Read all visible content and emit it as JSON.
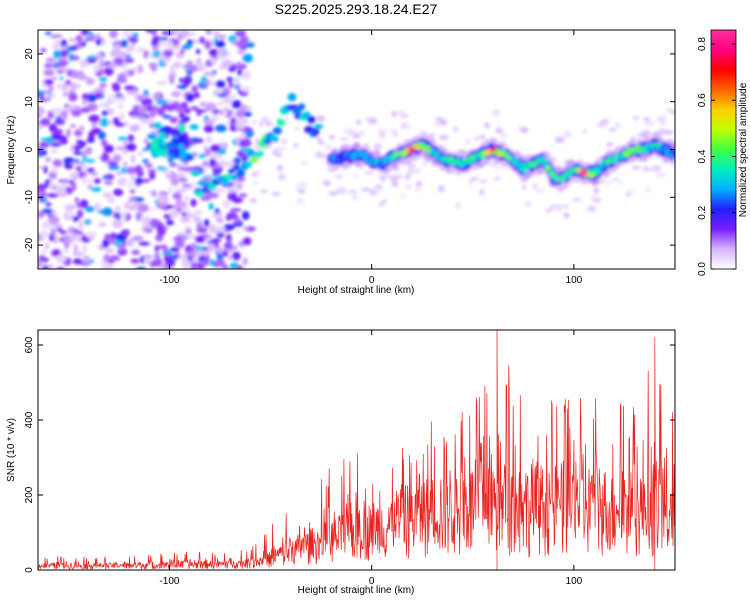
{
  "title": "S225.2025.293.18.24.E27",
  "chart_data": [
    {
      "type": "heatmap",
      "title": "S225.2025.293.18.24.E27",
      "xlabel": "Height of straight line (km)",
      "ylabel": "Frequency (Hz)",
      "xlim": [
        -165,
        150
      ],
      "ylim": [
        -25,
        25
      ],
      "xticks": [
        -100,
        0,
        100
      ],
      "xtick_labels": [
        "-100",
        "0",
        "100"
      ],
      "yticks": [
        -20,
        -10,
        0,
        10,
        20
      ],
      "ytick_labels": [
        "-20",
        "-10",
        "0",
        "10",
        "20"
      ],
      "colorbar": {
        "label": "Normalized spectral amplitude",
        "range": [
          0,
          0.85
        ],
        "ticks": [
          0.0,
          0.2,
          0.4,
          0.6,
          0.8
        ],
        "tick_labels": [
          "0.0",
          "0.2",
          "0.4",
          "0.6",
          "0.8"
        ],
        "colormap": [
          "#ffffff",
          "#d7b4ff",
          "#7a1fff",
          "#2020ff",
          "#00b0ff",
          "#00f0c0",
          "#40ff40",
          "#c0ff00",
          "#ffd000",
          "#ff6000",
          "#ff0000",
          "#ff0080",
          "#ff30a0"
        ]
      },
      "ridge": {
        "x": [
          -20,
          -12,
          -5,
          0,
          5,
          10,
          15,
          20,
          25,
          30,
          35,
          40,
          45,
          50,
          55,
          60,
          65,
          70,
          75,
          80,
          85,
          90,
          95,
          100,
          105,
          110,
          115,
          120,
          125,
          130,
          135,
          140,
          145,
          150
        ],
        "y": [
          -2,
          -1.5,
          -1,
          -2.5,
          -3,
          -1.5,
          -1,
          0,
          1,
          -0.5,
          -2,
          -2.5,
          -3,
          -2,
          -1,
          0,
          -1,
          -2,
          -4,
          -3,
          -2,
          -6,
          -6,
          -4,
          -5,
          -5,
          -3,
          -2,
          -1,
          0,
          0,
          1,
          0,
          -1
        ],
        "amplitude": [
          0.3,
          0.35,
          0.4,
          0.45,
          0.4,
          0.5,
          0.6,
          0.8,
          0.6,
          0.5,
          0.45,
          0.5,
          0.55,
          0.5,
          0.55,
          0.75,
          0.6,
          0.5,
          0.45,
          0.5,
          0.5,
          0.55,
          0.5,
          0.5,
          0.85,
          0.5,
          0.45,
          0.5,
          0.5,
          0.55,
          0.5,
          0.45,
          0.4,
          0.35
        ]
      },
      "diagonal_branch": {
        "x": [
          -85,
          -75,
          -65,
          -55,
          -45,
          -40,
          -35,
          -30,
          -25
        ],
        "y": [
          -8,
          -6,
          -4,
          0,
          5,
          10,
          8,
          5,
          3
        ],
        "amplitude": [
          0.3,
          0.3,
          0.35,
          0.4,
          0.35,
          0.3,
          0.3,
          0.3,
          0.25
        ]
      },
      "noise_region": {
        "xmin": -165,
        "xmax": -60,
        "amplitude_max": 0.2
      }
    },
    {
      "type": "line",
      "xlabel": "Height of straight line (km)",
      "ylabel": "SNR (10 * v/v)",
      "xlim": [
        -165,
        150
      ],
      "ylim": [
        0,
        640
      ],
      "xticks": [
        -100,
        0,
        100
      ],
      "xtick_labels": [
        "-100",
        "0",
        "100"
      ],
      "yticks": [
        0,
        200,
        400,
        600
      ],
      "ytick_labels": [
        "0",
        "200",
        "400",
        "600"
      ],
      "color": "#e8221e",
      "series": [
        {
          "name": "SNR",
          "x": [
            -165,
            -150,
            -135,
            -120,
            -105,
            -90,
            -75,
            -60,
            -50,
            -40,
            -30,
            -20,
            -10,
            0,
            10,
            20,
            30,
            40,
            50,
            60,
            62,
            70,
            80,
            90,
            100,
            110,
            120,
            130,
            140,
            150
          ],
          "typical": [
            15,
            15,
            15,
            15,
            18,
            20,
            20,
            25,
            40,
            70,
            90,
            110,
            130,
            150,
            170,
            200,
            220,
            230,
            230,
            230,
            230,
            240,
            230,
            230,
            240,
            230,
            220,
            230,
            220,
            200
          ],
          "peak": [
            35,
            38,
            35,
            38,
            45,
            50,
            45,
            60,
            120,
            180,
            210,
            280,
            310,
            350,
            360,
            400,
            420,
            460,
            450,
            560,
            640,
            520,
            470,
            450,
            480,
            460,
            470,
            460,
            620,
            420
          ]
        }
      ]
    }
  ]
}
